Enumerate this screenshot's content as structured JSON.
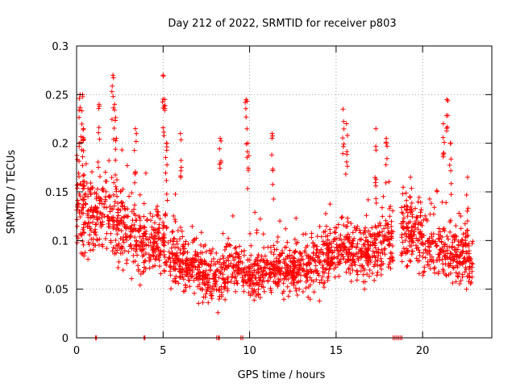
{
  "chart_data": {
    "type": "scatter",
    "title": "Day 212 of 2022, SRMTID for receiver p803",
    "xlabel": "GPS time / hours",
    "ylabel": "SRMTID / TECUs",
    "xlim": [
      0,
      24
    ],
    "ylim": [
      0,
      0.3
    ],
    "xticks": [
      0,
      5,
      10,
      15,
      20
    ],
    "xtick_labels": [
      "0",
      "5",
      "10",
      "15",
      "20"
    ],
    "yticks": [
      0,
      0.05,
      0.1,
      0.15,
      0.2,
      0.25,
      0.3
    ],
    "ytick_labels": [
      "0",
      "0.05",
      "0.1",
      "0.15",
      "0.2",
      "0.25",
      "0.3"
    ],
    "grid": true,
    "marker": "+",
    "series": [
      {
        "name": "SRMTID",
        "color": "#ff0000",
        "data_range_hours": [
          0,
          22.9
        ],
        "trend": [
          [
            0,
            0.145
          ],
          [
            0.5,
            0.125
          ],
          [
            1,
            0.13
          ],
          [
            1.5,
            0.135
          ],
          [
            2,
            0.13
          ],
          [
            2.5,
            0.12
          ],
          [
            3,
            0.105
          ],
          [
            3.5,
            0.1
          ],
          [
            4,
            0.095
          ],
          [
            4.5,
            0.1
          ],
          [
            5,
            0.1
          ],
          [
            5.5,
            0.085
          ],
          [
            6,
            0.08
          ],
          [
            6.5,
            0.075
          ],
          [
            7,
            0.07
          ],
          [
            7.5,
            0.06
          ],
          [
            8,
            0.06
          ],
          [
            8.5,
            0.065
          ],
          [
            9,
            0.07
          ],
          [
            9.5,
            0.075
          ],
          [
            10,
            0.065
          ],
          [
            10.5,
            0.065
          ],
          [
            11,
            0.07
          ],
          [
            11.5,
            0.075
          ],
          [
            12,
            0.07
          ],
          [
            12.5,
            0.07
          ],
          [
            13,
            0.07
          ],
          [
            13.5,
            0.075
          ],
          [
            14,
            0.08
          ],
          [
            14.5,
            0.085
          ],
          [
            15,
            0.09
          ],
          [
            15.5,
            0.095
          ],
          [
            16,
            0.085
          ],
          [
            16.5,
            0.09
          ],
          [
            17,
            0.09
          ],
          [
            17.5,
            0.095
          ],
          [
            18,
            0.1
          ],
          [
            18.3,
            0.1
          ],
          [
            18.6,
            0.1
          ],
          [
            19,
            0.11
          ],
          [
            19.5,
            0.11
          ],
          [
            20,
            0.1
          ],
          [
            20.5,
            0.095
          ],
          [
            21,
            0.09
          ],
          [
            21.5,
            0.085
          ],
          [
            22,
            0.085
          ],
          [
            22.5,
            0.08
          ],
          [
            22.9,
            0.075
          ]
        ],
        "spread": [
          [
            0,
            0.045
          ],
          [
            2,
            0.04
          ],
          [
            4,
            0.035
          ],
          [
            6,
            0.03
          ],
          [
            8,
            0.025
          ],
          [
            10,
            0.025
          ],
          [
            12,
            0.025
          ],
          [
            14,
            0.028
          ],
          [
            16,
            0.03
          ],
          [
            18,
            0.032
          ],
          [
            20,
            0.035
          ],
          [
            22.9,
            0.03
          ]
        ],
        "gaps_hours": [
          [
            18.3,
            18.75
          ]
        ],
        "peaks": [
          [
            0.15,
            0.2
          ],
          [
            0.2,
            0.25
          ],
          [
            0.35,
            0.25
          ],
          [
            0.4,
            0.215
          ],
          [
            1.3,
            0.24
          ],
          [
            2.1,
            0.27
          ],
          [
            2.2,
            0.24
          ],
          [
            2.3,
            0.205
          ],
          [
            3.4,
            0.215
          ],
          [
            5.0,
            0.27
          ],
          [
            5.1,
            0.245
          ],
          [
            5.2,
            0.2
          ],
          [
            6.0,
            0.21
          ],
          [
            8.3,
            0.205
          ],
          [
            9.8,
            0.245
          ],
          [
            9.9,
            0.2
          ],
          [
            11.3,
            0.21
          ],
          [
            15.4,
            0.235
          ],
          [
            15.6,
            0.22
          ],
          [
            17.3,
            0.215
          ],
          [
            17.9,
            0.205
          ],
          [
            19.3,
            0.165
          ],
          [
            21.2,
            0.22
          ],
          [
            21.4,
            0.245
          ],
          [
            21.6,
            0.2
          ],
          [
            22.6,
            0.165
          ]
        ],
        "zero_points_hours": [
          1.1,
          1.15,
          3.9,
          3.95,
          8.1,
          8.2,
          8.25,
          9.5,
          9.6,
          18.3,
          18.4,
          18.5,
          18.6,
          18.7,
          18.8
        ]
      }
    ]
  }
}
